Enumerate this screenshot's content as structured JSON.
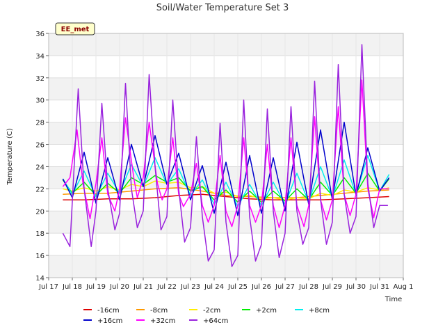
{
  "chart_data": {
    "type": "line",
    "title": "Soil/Water Temperature Set 3",
    "xlabel": "Time",
    "ylabel": "Temperature (C)",
    "badge": "EE_met",
    "ylim": [
      14,
      36
    ],
    "yticks": [
      14,
      16,
      18,
      20,
      22,
      24,
      26,
      28,
      30,
      32,
      34,
      36
    ],
    "xlim": [
      17,
      32
    ],
    "xticks": [
      {
        "day": 17,
        "label": "Jul 17"
      },
      {
        "day": 18,
        "label": "Jul 18"
      },
      {
        "day": 19,
        "label": "Jul 19"
      },
      {
        "day": 20,
        "label": "Jul 20"
      },
      {
        "day": 21,
        "label": "Jul 21"
      },
      {
        "day": 22,
        "label": "Jul 22"
      },
      {
        "day": 23,
        "label": "Jul 23"
      },
      {
        "day": 24,
        "label": "Jul 24"
      },
      {
        "day": 25,
        "label": "Jul 25"
      },
      {
        "day": 26,
        "label": "Jul 26"
      },
      {
        "day": 27,
        "label": "Jul 27"
      },
      {
        "day": 28,
        "label": "Jul 28"
      },
      {
        "day": 29,
        "label": "Jul 29"
      },
      {
        "day": 30,
        "label": "Jul 30"
      },
      {
        "day": 31,
        "label": "Jul 31"
      },
      {
        "day": 32,
        "label": "Aug 1"
      }
    ],
    "grid": true,
    "legend_position": "bottom",
    "series": [
      {
        "name": "-16cm",
        "color": "#dd0000",
        "x": [
          17.6,
          18.5,
          19.5,
          20.5,
          21.5,
          22.5,
          23.5,
          24.5,
          25.5,
          26.5,
          27.5,
          28.5,
          29.5,
          30.5,
          31.4
        ],
        "values": [
          21.0,
          21.0,
          21.1,
          21.1,
          21.2,
          21.4,
          21.5,
          21.3,
          21.1,
          21.0,
          21.0,
          21.0,
          21.1,
          21.2,
          21.3
        ]
      },
      {
        "name": "-8cm",
        "color": "#ff9900",
        "x": [
          17.6,
          18.5,
          19.5,
          20.5,
          21.5,
          22.5,
          23.5,
          24.5,
          25.5,
          26.5,
          27.5,
          28.5,
          29.5,
          30.5,
          31.4
        ],
        "values": [
          21.5,
          21.6,
          21.6,
          21.8,
          22.0,
          22.1,
          21.8,
          21.4,
          21.3,
          21.2,
          21.2,
          21.4,
          21.6,
          21.8,
          21.9
        ]
      },
      {
        "name": "-2cm",
        "color": "#ffee00",
        "x": [
          17.6,
          18.0,
          18.5,
          19.0,
          19.5,
          20.0,
          20.5,
          21.0,
          21.5,
          22.0,
          22.5,
          23.0,
          23.5,
          24.0,
          24.5,
          25.0,
          25.5,
          26.0,
          26.5,
          27.0,
          27.5,
          28.0,
          28.5,
          29.0,
          29.5,
          30.0,
          30.5,
          31.0,
          31.4
        ],
        "values": [
          22.0,
          21.8,
          22.1,
          21.8,
          22.2,
          21.9,
          22.4,
          22.2,
          22.7,
          22.5,
          22.6,
          22.1,
          22.2,
          21.6,
          21.7,
          21.3,
          21.4,
          21.1,
          21.2,
          21.0,
          21.2,
          21.1,
          21.6,
          21.4,
          21.9,
          21.7,
          22.1,
          21.9,
          22.1
        ]
      },
      {
        "name": "+2cm",
        "color": "#00ee00",
        "x": [
          17.6,
          18.0,
          18.5,
          19.0,
          19.5,
          20.0,
          20.5,
          21.0,
          21.5,
          22.0,
          22.5,
          23.0,
          23.5,
          24.0,
          24.5,
          25.0,
          25.5,
          26.0,
          26.5,
          27.0,
          27.5,
          28.0,
          28.5,
          29.0,
          29.5,
          30.0,
          30.5,
          31.0,
          31.4
        ],
        "values": [
          22.8,
          21.6,
          22.6,
          21.4,
          22.5,
          21.6,
          23.0,
          22.4,
          23.2,
          22.6,
          23.0,
          21.8,
          22.2,
          21.0,
          21.9,
          20.8,
          21.8,
          20.8,
          21.8,
          20.9,
          22.0,
          21.0,
          22.6,
          21.4,
          23.0,
          21.6,
          23.4,
          21.8,
          22.9
        ]
      },
      {
        "name": "+8cm",
        "color": "#00eeee",
        "x": [
          17.6,
          18.0,
          18.5,
          19.0,
          19.5,
          20.0,
          20.5,
          21.0,
          21.5,
          22.0,
          22.5,
          23.0,
          23.5,
          24.0,
          24.5,
          25.0,
          25.5,
          26.0,
          26.5,
          27.0,
          27.5,
          28.0,
          28.5,
          29.0,
          29.5,
          30.0,
          30.5,
          31.0,
          31.4
        ],
        "values": [
          22.9,
          21.5,
          23.6,
          21.3,
          23.4,
          21.6,
          24.2,
          22.2,
          24.8,
          22.4,
          23.8,
          21.4,
          22.8,
          20.6,
          22.6,
          20.4,
          22.4,
          20.5,
          22.6,
          20.6,
          23.4,
          20.8,
          24.0,
          21.2,
          24.6,
          21.5,
          25.0,
          21.8,
          23.3
        ]
      },
      {
        "name": "+16cm",
        "color": "#0000cc",
        "x": [
          17.6,
          18.0,
          18.5,
          19.0,
          19.5,
          20.0,
          20.5,
          21.0,
          21.5,
          22.0,
          22.5,
          23.0,
          23.5,
          24.0,
          24.5,
          25.0,
          25.5,
          26.0,
          26.5,
          27.0,
          27.5,
          28.0,
          28.5,
          29.0,
          29.5,
          30.0,
          30.5,
          31.0,
          31.4
        ],
        "values": [
          22.9,
          21.2,
          25.3,
          20.7,
          24.8,
          21.0,
          26.0,
          22.2,
          26.8,
          22.4,
          25.2,
          21.0,
          24.1,
          19.8,
          24.4,
          19.6,
          25.0,
          19.8,
          24.8,
          20.0,
          26.2,
          20.6,
          27.3,
          21.0,
          28.0,
          21.4,
          25.7,
          21.8,
          23.0
        ]
      },
      {
        "name": "+32cm",
        "color": "#ff00ff",
        "x": [
          17.6,
          17.9,
          18.2,
          18.45,
          18.75,
          19.0,
          19.25,
          19.5,
          19.8,
          20.0,
          20.25,
          20.6,
          20.75,
          21.0,
          21.25,
          21.6,
          21.8,
          22.0,
          22.25,
          22.5,
          22.7,
          23.0,
          23.25,
          23.5,
          23.75,
          24.0,
          24.25,
          24.5,
          24.75,
          25.0,
          25.25,
          25.5,
          25.75,
          26.0,
          26.25,
          26.5,
          26.75,
          27.0,
          27.25,
          27.5,
          27.8,
          28.0,
          28.25,
          28.5,
          28.75,
          29.0,
          29.25,
          29.5,
          29.75,
          30.0,
          30.25,
          30.5,
          30.75,
          31.0,
          31.4
        ],
        "values": [
          22.2,
          23.0,
          27.3,
          22.5,
          19.3,
          22.5,
          26.6,
          21.5,
          20.0,
          22.0,
          28.4,
          23.0,
          21.2,
          23.0,
          28.0,
          22.5,
          21.0,
          22.0,
          26.6,
          21.5,
          20.4,
          21.5,
          24.3,
          20.5,
          19.0,
          20.5,
          25.0,
          20.0,
          18.6,
          20.5,
          26.6,
          20.5,
          19.0,
          20.5,
          26.0,
          20.5,
          18.5,
          20.5,
          26.6,
          20.5,
          18.6,
          20.5,
          28.5,
          21.0,
          19.2,
          21.0,
          29.4,
          21.5,
          19.6,
          21.5,
          31.8,
          22.0,
          19.4,
          22.0,
          22.0
        ]
      },
      {
        "name": "+64cm",
        "color": "#9922dd",
        "x": [
          17.6,
          17.9,
          18.25,
          18.5,
          18.8,
          19.0,
          19.25,
          19.5,
          19.8,
          20.0,
          20.25,
          20.5,
          20.75,
          21.0,
          21.25,
          21.5,
          21.75,
          22.0,
          22.25,
          22.5,
          22.75,
          23.0,
          23.25,
          23.5,
          23.75,
          24.0,
          24.25,
          24.5,
          24.75,
          25.0,
          25.25,
          25.5,
          25.75,
          26.0,
          26.25,
          26.5,
          26.75,
          27.0,
          27.25,
          27.5,
          27.75,
          28.0,
          28.25,
          28.5,
          28.75,
          29.0,
          29.25,
          29.5,
          29.75,
          30.0,
          30.25,
          30.5,
          30.75,
          31.0,
          31.35
        ],
        "values": [
          18.0,
          16.8,
          31.0,
          22.0,
          16.8,
          20.0,
          29.7,
          22.0,
          18.3,
          19.8,
          31.5,
          22.0,
          18.5,
          20.0,
          32.3,
          24.0,
          18.3,
          19.5,
          30.0,
          22.0,
          17.2,
          18.5,
          26.7,
          19.5,
          15.5,
          16.5,
          27.9,
          19.0,
          15.0,
          16.0,
          30.0,
          19.5,
          15.5,
          17.0,
          29.2,
          20.0,
          15.8,
          18.0,
          29.4,
          20.0,
          17.0,
          18.5,
          31.7,
          21.0,
          17.0,
          19.0,
          33.2,
          21.5,
          18.0,
          19.5,
          35.0,
          22.5,
          18.5,
          20.5,
          20.5
        ]
      }
    ]
  }
}
